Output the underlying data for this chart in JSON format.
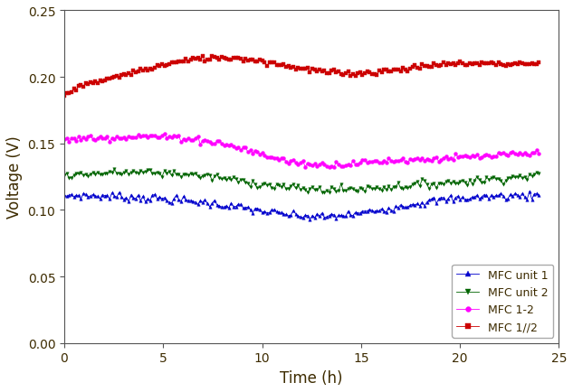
{
  "title": "",
  "xlabel": "Time (h)",
  "ylabel": "Voltage (V)",
  "xlim": [
    0,
    25
  ],
  "ylim": [
    0.0,
    0.25
  ],
  "xticks": [
    0,
    5,
    10,
    15,
    20,
    25
  ],
  "yticks": [
    0.0,
    0.05,
    0.1,
    0.15,
    0.2,
    0.25
  ],
  "series": {
    "MFC unit 1": {
      "color": "#0000CD",
      "marker": "^",
      "markersize": 2.5,
      "linewidth": 0.6,
      "noise_std": 0.0015
    },
    "MFC unit 2": {
      "color": "#006400",
      "marker": "v",
      "markersize": 2.5,
      "linewidth": 0.6,
      "noise_std": 0.0015
    },
    "MFC 1-2": {
      "color": "#FF00FF",
      "marker": "o",
      "markersize": 2.8,
      "linewidth": 0.6,
      "noise_std": 0.0012
    },
    "MFC 1//2": {
      "color": "#CC0000",
      "marker": "s",
      "markersize": 2.5,
      "linewidth": 0.6,
      "noise_std": 0.001
    }
  },
  "text_color": "#3d2b00",
  "background_color": "#ffffff",
  "n_points": 200,
  "figsize": [
    6.33,
    4.35
  ],
  "dpi": 100
}
